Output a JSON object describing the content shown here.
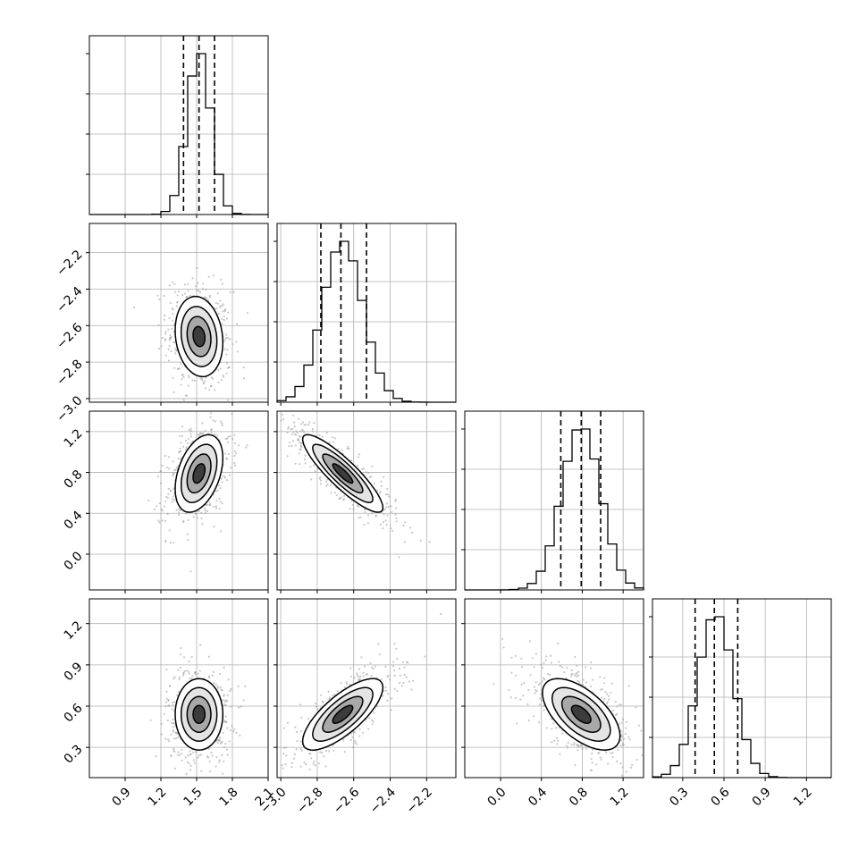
{
  "chart_data": {
    "type": "corner",
    "parameters": [
      {
        "ticks": [
          0.9,
          1.2,
          1.5,
          1.8,
          2.1
        ],
        "tick_labels": [
          "0.9",
          "1.2",
          "1.5",
          "1.8",
          "2.1"
        ],
        "range": [
          0.6,
          2.1
        ],
        "quantiles": [
          1.39,
          1.52,
          1.65
        ],
        "mean": 1.52,
        "sd": 0.1
      },
      {
        "ticks": [
          -3.0,
          -2.8,
          -2.6,
          -2.4,
          -2.2
        ],
        "tick_labels": [
          "−3.0",
          "−2.8",
          "−2.6",
          "−2.4",
          "−2.2"
        ],
        "range": [
          -3.02,
          -2.04
        ],
        "quantiles": [
          -2.78,
          -2.67,
          -2.53
        ],
        "mean": -2.66,
        "sd": 0.11
      },
      {
        "ticks": [
          0.0,
          0.4,
          0.8,
          1.2
        ],
        "tick_labels": [
          "0.0",
          "0.4",
          "0.8",
          "1.2"
        ],
        "range": [
          -0.35,
          1.4
        ],
        "quantiles": [
          0.59,
          0.79,
          0.98
        ],
        "mean": 0.79,
        "sd": 0.19
      },
      {
        "ticks": [
          0.3,
          0.6,
          0.9,
          1.2
        ],
        "tick_labels": [
          "0.3",
          "0.6",
          "0.9",
          "1.2"
        ],
        "range": [
          0.08,
          1.38
        ],
        "quantiles": [
          0.39,
          0.53,
          0.7
        ],
        "mean": 0.54,
        "sd": 0.13
      }
    ],
    "correlations": [
      [
        1.0,
        -0.15,
        0.4,
        0.0
      ],
      [
        -0.15,
        1.0,
        -0.88,
        0.75
      ],
      [
        0.4,
        -0.88,
        1.0,
        -0.6
      ],
      [
        0.0,
        0.75,
        -0.6,
        1.0
      ]
    ],
    "contour_levels_sigma": [
      0.5,
      1.0,
      1.5,
      2.0
    ],
    "quantile_line_style": "dashed",
    "histogram_style": "step",
    "grid": true,
    "colors": {
      "line": "#000000",
      "grid": "#b0b0b0",
      "points": "#9a9a9a"
    }
  }
}
